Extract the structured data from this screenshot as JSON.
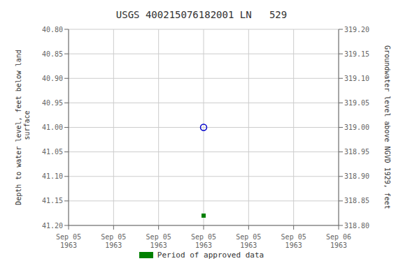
{
  "chart_data": {
    "type": "scatter",
    "title": "USGS 400215076182001 LN   529",
    "y_label": "Depth to water level, feet below land\n surface",
    "y2_label": "Groundwater level above NGVD 1929, feet",
    "categories": [
      "Sep 05\n1963",
      "Sep 05\n1963",
      "Sep 05\n1963",
      "Sep 05\n1963",
      "Sep 05\n1963",
      "Sep 05\n1963",
      "Sep 06\n1963"
    ],
    "series": [
      {
        "color": "#0000cc",
        "marker": "open_circle",
        "values": [
          null,
          null,
          null,
          41.0,
          null,
          null,
          null
        ]
      },
      {
        "name": "Period of approved data",
        "color": "#008000",
        "marker": "square",
        "values": [
          null,
          null,
          null,
          41.18,
          null,
          null,
          null
        ]
      }
    ],
    "ylim": [
      41.2,
      40.8
    ],
    "yticks": [
      {
        "value": 40.8,
        "label": "40.80"
      },
      {
        "value": 40.85,
        "label": "40.85"
      },
      {
        "value": 40.9,
        "label": "40.90"
      },
      {
        "value": 40.95,
        "label": "40.95"
      },
      {
        "value": 41.0,
        "label": "41.00"
      },
      {
        "value": 41.05,
        "label": "41.05"
      },
      {
        "value": 41.1,
        "label": "41.10"
      },
      {
        "value": 41.15,
        "label": "41.15"
      },
      {
        "value": 41.2,
        "label": "41.20"
      }
    ],
    "y2lim": [
      318.8,
      319.2
    ],
    "y2ticks": [
      {
        "value": 319.2,
        "label": "319.20"
      },
      {
        "value": 319.15,
        "label": "319.15"
      },
      {
        "value": 319.1,
        "label": "319.10"
      },
      {
        "value": 319.05,
        "label": "319.05"
      },
      {
        "value": 319.0,
        "label": "319.00"
      },
      {
        "value": 318.95,
        "label": "318.95"
      },
      {
        "value": 318.9,
        "label": "318.90"
      },
      {
        "value": 318.85,
        "label": "318.85"
      },
      {
        "value": 318.8,
        "label": "318.80"
      }
    ],
    "grid": true,
    "legend": "bottom"
  }
}
